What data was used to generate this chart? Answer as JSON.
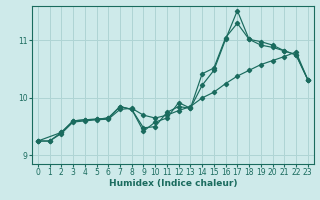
{
  "xlabel": "Humidex (Indice chaleur)",
  "ylabel": "",
  "bg_color": "#ceeaea",
  "grid_color": "#afd4d4",
  "line_color": "#1a6b5e",
  "xlim": [
    -0.5,
    23.5
  ],
  "ylim": [
    8.85,
    11.6
  ],
  "yticks": [
    9,
    10,
    11
  ],
  "xticks": [
    0,
    1,
    2,
    3,
    4,
    5,
    6,
    7,
    8,
    9,
    10,
    11,
    12,
    13,
    14,
    15,
    16,
    17,
    18,
    19,
    20,
    21,
    22,
    23
  ],
  "line1_x": [
    0,
    1,
    2,
    3,
    4,
    5,
    6,
    7,
    8,
    9,
    10,
    11,
    12,
    13,
    14,
    15,
    16,
    17,
    18,
    19,
    20,
    21,
    22,
    23
  ],
  "line1_y": [
    9.25,
    9.25,
    9.38,
    9.58,
    9.6,
    9.62,
    9.63,
    9.8,
    9.82,
    9.7,
    9.65,
    9.7,
    9.78,
    9.85,
    10.0,
    10.1,
    10.25,
    10.38,
    10.48,
    10.58,
    10.65,
    10.72,
    10.8,
    10.32
  ],
  "line2_x": [
    0,
    1,
    2,
    3,
    4,
    5,
    6,
    7,
    8,
    9,
    10,
    11,
    12,
    13,
    14,
    15,
    16,
    17,
    18,
    19,
    20,
    21,
    22,
    23
  ],
  "line2_y": [
    9.25,
    9.25,
    9.4,
    9.6,
    9.62,
    9.63,
    9.65,
    9.85,
    9.8,
    9.48,
    9.5,
    9.75,
    9.85,
    9.82,
    10.22,
    10.48,
    11.02,
    11.52,
    11.02,
    10.92,
    10.88,
    10.82,
    10.75,
    10.32
  ],
  "line3_x": [
    0,
    2,
    3,
    4,
    5,
    6,
    7,
    8,
    9,
    10,
    11,
    12,
    13,
    14,
    15,
    16,
    17,
    18,
    19,
    20,
    21,
    22,
    23
  ],
  "line3_y": [
    9.25,
    9.4,
    9.6,
    9.62,
    9.63,
    9.65,
    9.85,
    9.8,
    9.42,
    9.58,
    9.65,
    9.92,
    9.82,
    10.42,
    10.52,
    11.05,
    11.3,
    11.02,
    10.98,
    10.92,
    10.82,
    10.75,
    10.32
  ]
}
